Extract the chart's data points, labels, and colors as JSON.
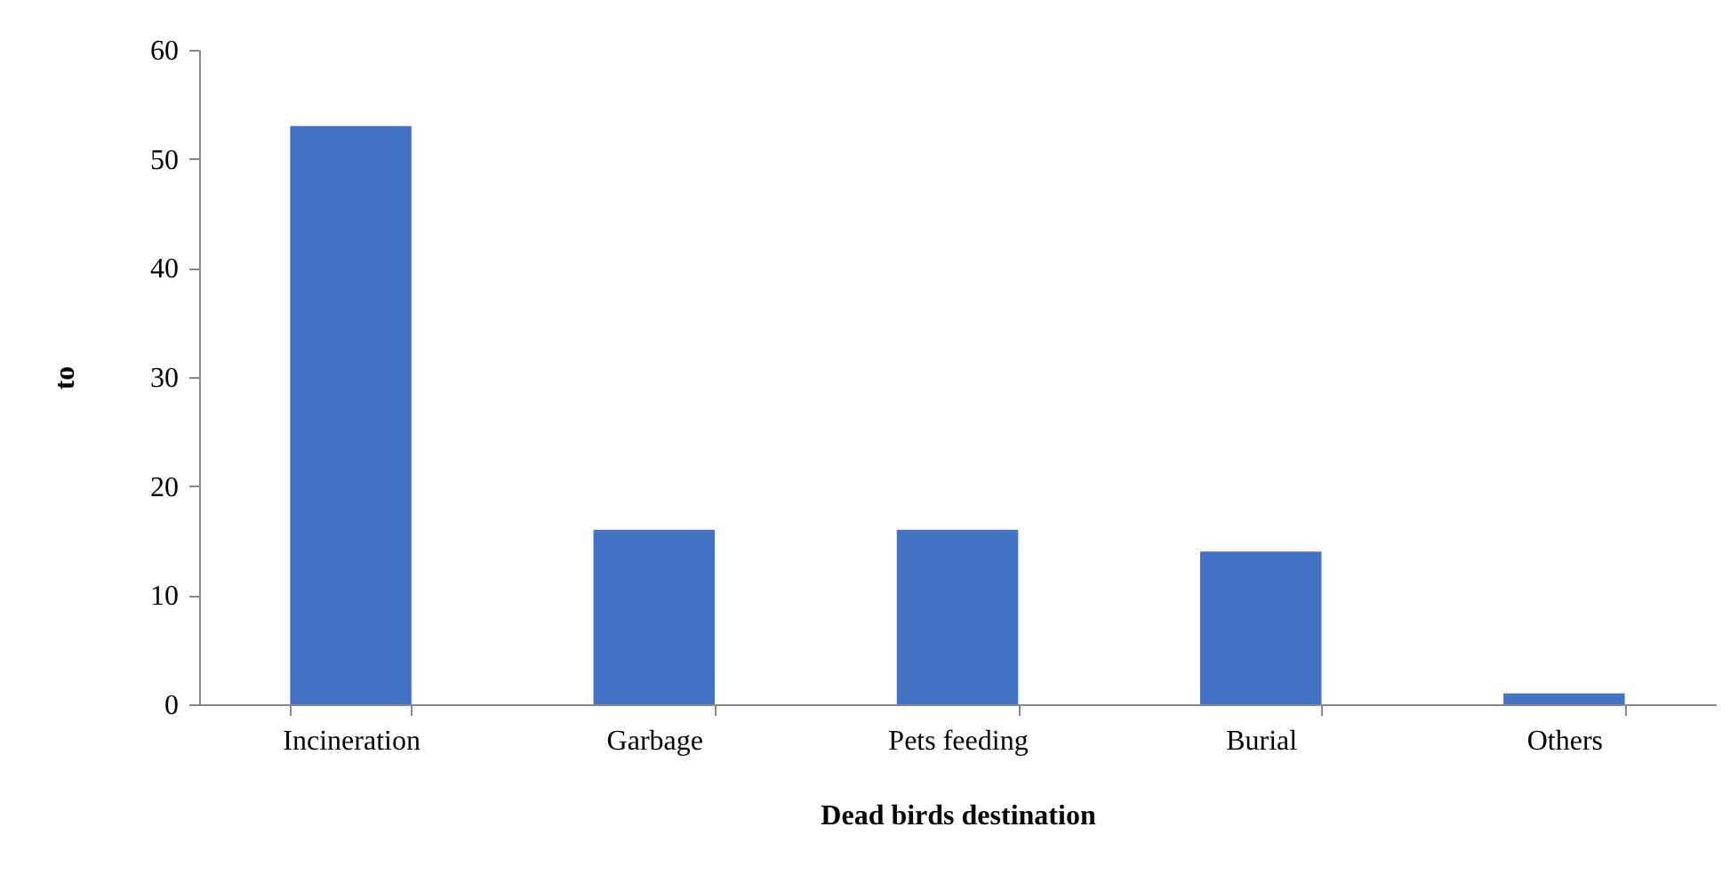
{
  "chart_data": {
    "type": "bar",
    "xlabel": "Dead birds destination",
    "ylabel": "to",
    "categories": [
      "Incineration",
      "Garbage",
      "Pets feeding",
      "Burial",
      "Others"
    ],
    "values": [
      53,
      16,
      16,
      14,
      1
    ],
    "color": "#4472c4",
    "ylim": [
      0,
      60
    ],
    "yticks": [
      0,
      10,
      20,
      30,
      40,
      50,
      60
    ],
    "grid": false
  }
}
